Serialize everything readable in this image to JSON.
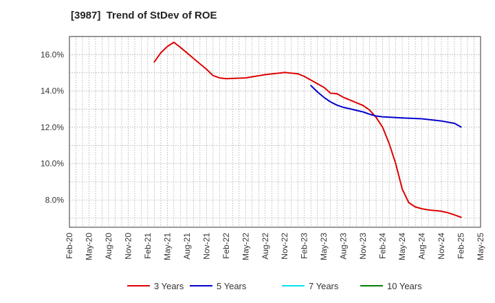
{
  "chart_data": {
    "type": "line",
    "title": "[3987]  Trend of StDev of ROE",
    "xlabel": "",
    "ylabel": "",
    "x_ticks": [
      "Feb-20",
      "May-20",
      "Aug-20",
      "Nov-20",
      "Feb-21",
      "May-21",
      "Aug-21",
      "Nov-21",
      "Feb-22",
      "May-22",
      "Aug-22",
      "Nov-22",
      "Feb-23",
      "May-23",
      "Aug-23",
      "Nov-23",
      "Feb-24",
      "May-24",
      "Aug-24",
      "Nov-24",
      "Feb-25",
      "May-25"
    ],
    "xlim": [
      "Feb-20",
      "May-25"
    ],
    "y_ticks": [
      "8.0%",
      "10.0%",
      "12.0%",
      "14.0%",
      "16.0%"
    ],
    "ylim": [
      6.5,
      17.0
    ],
    "grid": true,
    "legend_position": "bottom",
    "series": [
      {
        "name": "3 Years",
        "color": "#dd0000",
        "points": [
          [
            "Mar-21",
            15.6
          ],
          [
            "Apr-21",
            16.1
          ],
          [
            "May-21",
            16.45
          ],
          [
            "Jun-21",
            16.68
          ],
          [
            "Jul-21",
            16.4
          ],
          [
            "Aug-21",
            16.1
          ],
          [
            "Sep-21",
            15.8
          ],
          [
            "Oct-21",
            15.5
          ],
          [
            "Nov-21",
            15.2
          ],
          [
            "Dec-21",
            14.85
          ],
          [
            "Jan-22",
            14.72
          ],
          [
            "Feb-22",
            14.68
          ],
          [
            "May-22",
            14.72
          ],
          [
            "Aug-22",
            14.9
          ],
          [
            "Nov-22",
            15.02
          ],
          [
            "Jan-23",
            14.95
          ],
          [
            "Feb-23",
            14.8
          ],
          [
            "May-23",
            14.2
          ],
          [
            "Jun-23",
            13.88
          ],
          [
            "Jul-23",
            13.85
          ],
          [
            "Aug-23",
            13.65
          ],
          [
            "Nov-23",
            13.2
          ],
          [
            "Dec-23",
            12.95
          ],
          [
            "Jan-24",
            12.55
          ],
          [
            "Feb-24",
            12.0
          ],
          [
            "Mar-24",
            11.1
          ],
          [
            "Apr-24",
            10.0
          ],
          [
            "May-24",
            8.6
          ],
          [
            "Jun-24",
            7.85
          ],
          [
            "Jul-24",
            7.62
          ],
          [
            "Aug-24",
            7.52
          ],
          [
            "Sep-24",
            7.45
          ],
          [
            "Oct-24",
            7.42
          ],
          [
            "Nov-24",
            7.38
          ],
          [
            "Dec-24",
            7.3
          ],
          [
            "Jan-25",
            7.18
          ],
          [
            "Feb-25",
            7.05
          ]
        ]
      },
      {
        "name": "5 Years",
        "color": "#0000cc",
        "points": [
          [
            "Mar-23",
            14.3
          ],
          [
            "Apr-23",
            13.95
          ],
          [
            "May-23",
            13.65
          ],
          [
            "Jun-23",
            13.4
          ],
          [
            "Jul-23",
            13.22
          ],
          [
            "Aug-23",
            13.1
          ],
          [
            "Nov-23",
            12.85
          ],
          [
            "Dec-23",
            12.72
          ],
          [
            "Jan-24",
            12.62
          ],
          [
            "Feb-24",
            12.58
          ],
          [
            "May-24",
            12.52
          ],
          [
            "Aug-24",
            12.47
          ],
          [
            "Nov-24",
            12.35
          ],
          [
            "Jan-25",
            12.22
          ],
          [
            "Feb-25",
            12.02
          ]
        ]
      },
      {
        "name": "7 Years",
        "color": "#00e5ee",
        "points": []
      },
      {
        "name": "10 Years",
        "color": "#008000",
        "points": []
      }
    ]
  }
}
